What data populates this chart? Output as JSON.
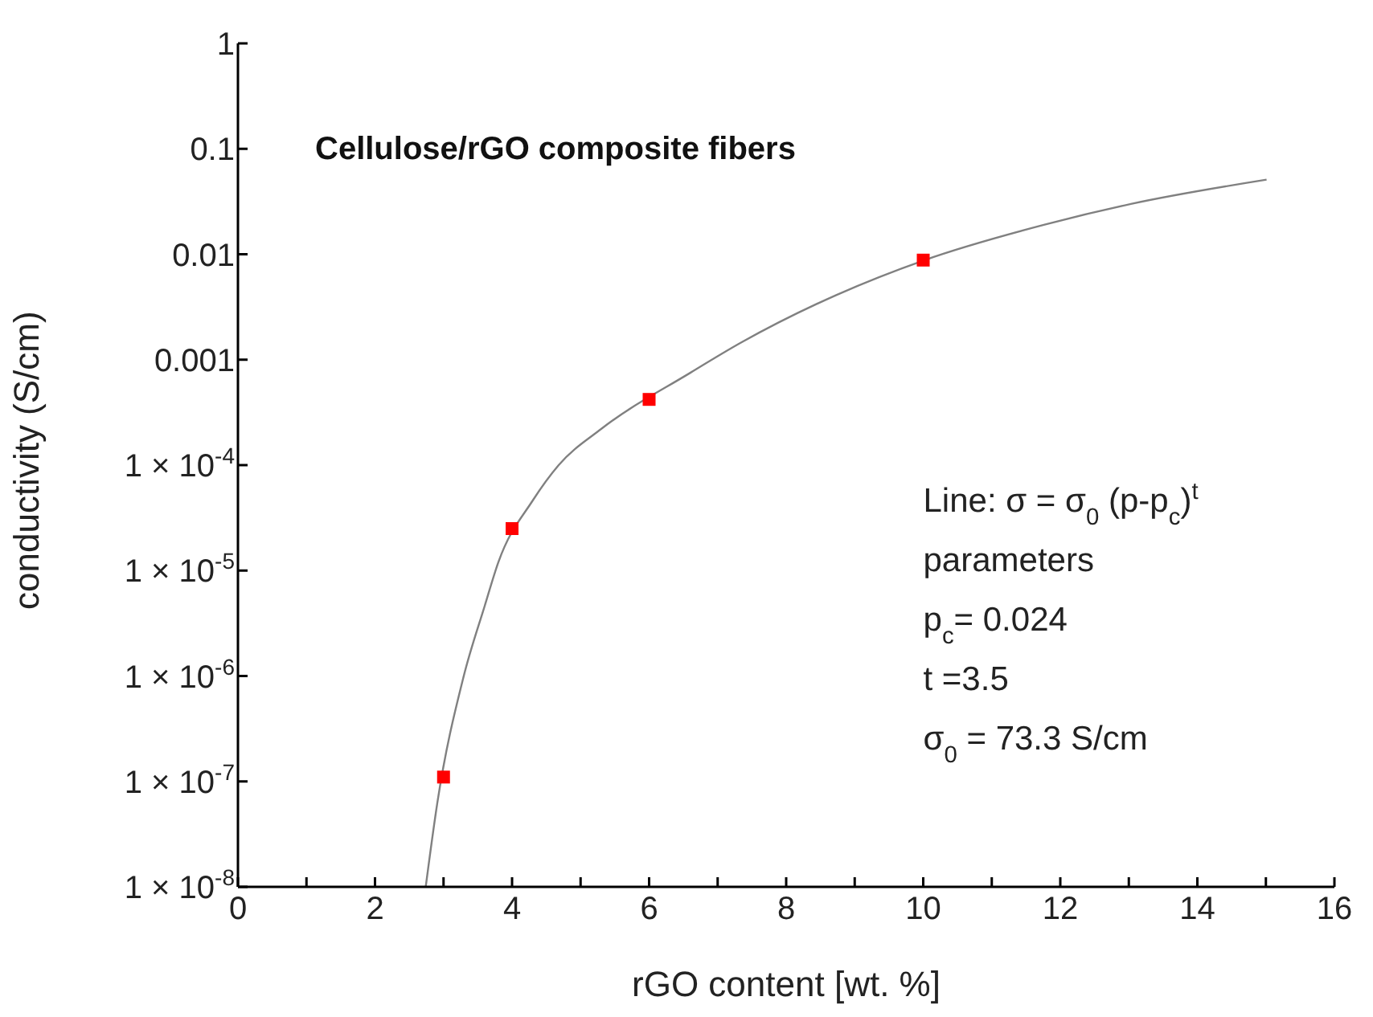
{
  "chart_data": {
    "type": "scatter",
    "title": "Cellulose/rGO composite fibers",
    "xlabel": "rGO content [wt. %]",
    "ylabel": "conductivity (S/cm)",
    "log": "y",
    "grid": false,
    "xlim": [
      0,
      16
    ],
    "xticks": [
      0,
      {
        "value": 1,
        "label": null
      },
      2,
      {
        "value": 3,
        "label": null
      },
      4,
      {
        "value": 5,
        "label": null
      },
      6,
      {
        "value": 7,
        "label": null
      },
      8,
      {
        "value": 9,
        "label": null
      },
      10,
      {
        "value": 11,
        "label": null
      },
      12,
      {
        "value": 13,
        "label": null
      },
      14,
      {
        "value": 15,
        "label": null
      },
      16
    ],
    "ylim": [
      1e-08,
      1
    ],
    "yticks": [
      {
        "value": 1e-08,
        "label": "1 × 10$^{-8}$"
      },
      {
        "value": 1e-07,
        "label": "1 × 10$^{-7}$"
      },
      {
        "value": 1e-06,
        "label": "1 × 10$^{-6}$"
      },
      {
        "value": 1e-05,
        "label": "1 × 10$^{-5}$"
      },
      {
        "value": 0.0001,
        "label": "1 × 10$^{-4}$"
      },
      0.001,
      0.01,
      0.1,
      1
    ],
    "annotations": [
      "Line:  σ = σ$_{0}$ (p-p$_{c}$)$^{t}$",
      "parameters",
      "p$_{c}$= 0.024",
      "t =3.5",
      "σ$_{0}$ = 73.3 S/cm"
    ],
    "series": [
      {
        "type": "line",
        "color": "#808080",
        "marker": "none",
        "line_style": "solid",
        "x": [
          2.74,
          2.91,
          3.29,
          3.6,
          3.8,
          4.3,
          4.68,
          5.3,
          6.6,
          7.34,
          8.73,
          10.02,
          11.76,
          13.03,
          15.01
        ],
        "values": [
          1e-08,
          6.3e-08,
          9.7e-07,
          4.6e-06,
          1.2e-05,
          4.6e-05,
          0.0001,
          0.00022,
          0.00075,
          0.00145,
          0.0041,
          0.0088,
          0.019,
          0.03,
          0.051
        ]
      },
      {
        "color": "#ff0000",
        "marker": "square",
        "x": [
          3,
          4,
          6,
          10
        ],
        "values": [
          1.1e-07,
          2.5e-05,
          0.00042,
          0.0088
        ]
      }
    ]
  }
}
